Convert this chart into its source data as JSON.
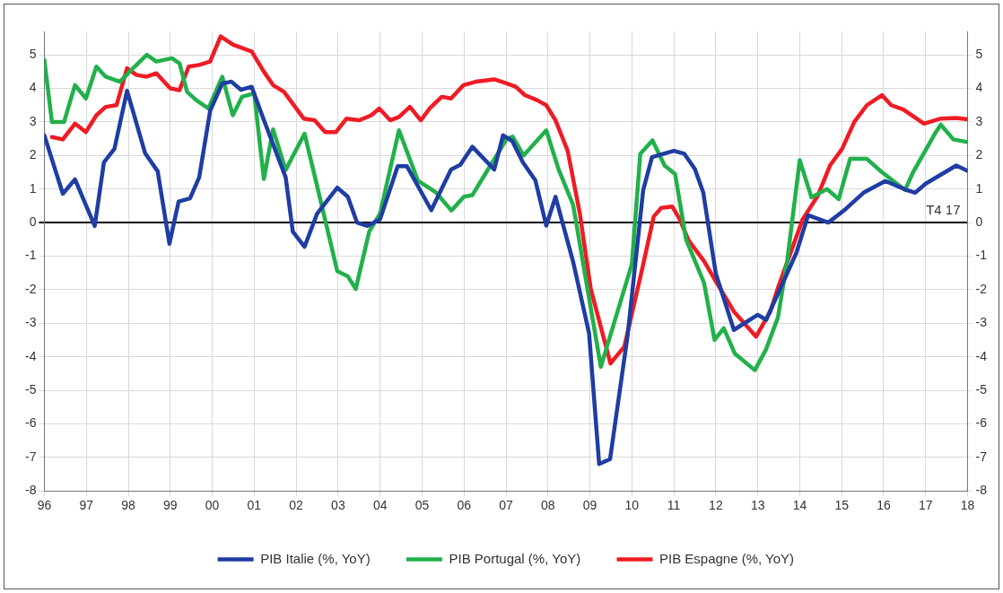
{
  "chart_data": {
    "type": "line",
    "legend": "bottom",
    "grid": true,
    "marker": "none",
    "line_style": "solid",
    "xlim": [
      1996,
      2018
    ],
    "xticks": [
      {
        "value": 1996,
        "label": "96"
      },
      {
        "value": 1997,
        "label": "97"
      },
      {
        "value": 1998,
        "label": "98"
      },
      {
        "value": 1999,
        "label": "99"
      },
      {
        "value": 2000,
        "label": "00"
      },
      {
        "value": 2001,
        "label": "01"
      },
      {
        "value": 2002,
        "label": "02"
      },
      {
        "value": 2003,
        "label": "03"
      },
      {
        "value": 2004,
        "label": "04"
      },
      {
        "value": 2005,
        "label": "05"
      },
      {
        "value": 2006,
        "label": "06"
      },
      {
        "value": 2007,
        "label": "07"
      },
      {
        "value": 2008,
        "label": "08"
      },
      {
        "value": 2009,
        "label": "09"
      },
      {
        "value": 2010,
        "label": "10"
      },
      {
        "value": 2011,
        "label": "11"
      },
      {
        "value": 2012,
        "label": "12"
      },
      {
        "value": 2013,
        "label": "13"
      },
      {
        "value": 2014,
        "label": "14"
      },
      {
        "value": 2015,
        "label": "15"
      },
      {
        "value": 2016,
        "label": "16"
      },
      {
        "value": 2017,
        "label": "17"
      },
      {
        "value": 2018,
        "label": "18"
      }
    ],
    "ylim": [
      -8,
      5.7
    ],
    "yticks": [
      -8,
      -7,
      -6,
      -5,
      -4,
      -3,
      -2,
      -1,
      0,
      1,
      2,
      3,
      4,
      5
    ],
    "y2lim": [
      -8,
      5.7
    ],
    "y2ticks": [
      -8,
      -7,
      -6,
      -5,
      -4,
      -3,
      -2,
      -1,
      0,
      1,
      2,
      3,
      4,
      5
    ],
    "annotations": [
      "T4 17"
    ],
    "series": [
      {
        "name": "PIB Italie (%, YoY)",
        "color": "#1f3da3",
        "x": [
          1996.0,
          1996.44,
          1996.73,
          1997.2,
          1997.42,
          1997.67,
          1997.97,
          1998.4,
          1998.7,
          1998.98,
          1999.2,
          1999.47,
          1999.69,
          1999.95,
          2000.24,
          2000.46,
          2000.68,
          2000.94,
          2001.23,
          2001.75,
          2001.92,
          2002.2,
          2002.5,
          2002.98,
          2003.23,
          2003.45,
          2003.7,
          2004.0,
          2004.42,
          2004.64,
          2005.22,
          2005.69,
          2005.91,
          2006.2,
          2006.72,
          2006.93,
          2007.15,
          2007.4,
          2007.7,
          2007.96,
          2008.18,
          2008.6,
          2008.98,
          2009.22,
          2009.48,
          2009.9,
          2010.27,
          2010.48,
          2011.0,
          2011.25,
          2011.5,
          2011.7,
          2012.0,
          2012.43,
          2013.0,
          2013.2,
          2013.92,
          2014.2,
          2014.68,
          2015.09,
          2015.52,
          2016.04,
          2016.55,
          2016.75,
          2017.0,
          2017.73,
          2018.0
        ],
        "values": [
          2.6,
          0.86,
          1.29,
          -0.1,
          1.8,
          2.2,
          3.93,
          2.07,
          1.53,
          -0.63,
          0.63,
          0.72,
          1.35,
          3.33,
          4.15,
          4.2,
          3.96,
          4.05,
          3.06,
          1.35,
          -0.27,
          -0.72,
          0.27,
          1.04,
          0.77,
          0.0,
          -0.1,
          0.1,
          1.68,
          1.68,
          0.37,
          1.58,
          1.72,
          2.26,
          1.58,
          2.6,
          2.43,
          1.8,
          1.26,
          -0.09,
          0.77,
          -1.17,
          -3.3,
          -7.2,
          -7.05,
          -3.35,
          0.97,
          1.95,
          2.14,
          2.05,
          1.6,
          0.9,
          -1.52,
          -3.2,
          -2.75,
          -2.9,
          -0.9,
          0.22,
          0.0,
          0.4,
          0.89,
          1.24,
          0.97,
          0.89,
          1.16,
          1.7,
          1.54
        ]
      },
      {
        "name": "PIB Portugal (%, YoY)",
        "color": "#22b04b",
        "x": [
          1996.0,
          1996.18,
          1996.47,
          1996.73,
          1996.99,
          1997.24,
          1997.46,
          1997.8,
          1998.15,
          1998.44,
          1998.67,
          1999.04,
          1999.22,
          1999.4,
          1999.62,
          1999.91,
          2000.24,
          2000.49,
          2000.71,
          2001.0,
          2001.23,
          2001.45,
          2001.75,
          2002.2,
          2002.45,
          2002.98,
          2003.23,
          2003.42,
          2003.74,
          2004.0,
          2004.45,
          2004.9,
          2005.33,
          2005.7,
          2006.0,
          2006.2,
          2006.58,
          2007.02,
          2007.16,
          2007.42,
          2007.96,
          2008.25,
          2008.6,
          2009.26,
          2010.0,
          2010.2,
          2010.49,
          2010.78,
          2011.03,
          2011.29,
          2011.72,
          2011.97,
          2012.19,
          2012.45,
          2012.93,
          2013.19,
          2013.48,
          2013.7,
          2014.0,
          2014.28,
          2014.65,
          2014.93,
          2015.2,
          2015.6,
          2015.96,
          2016.51,
          2016.7,
          2017.22,
          2017.36,
          2017.66,
          2018.0
        ],
        "values": [
          4.85,
          3.0,
          3.0,
          4.1,
          3.7,
          4.65,
          4.35,
          4.2,
          4.65,
          5.0,
          4.8,
          4.9,
          4.75,
          3.9,
          3.65,
          3.4,
          4.35,
          3.2,
          3.75,
          3.85,
          1.3,
          2.78,
          1.57,
          2.65,
          1.35,
          -1.45,
          -1.6,
          -1.98,
          -0.27,
          0.27,
          2.75,
          1.25,
          0.9,
          0.36,
          0.77,
          0.82,
          1.6,
          2.5,
          2.56,
          2.0,
          2.75,
          1.6,
          0.53,
          -4.3,
          -1.24,
          2.05,
          2.45,
          1.7,
          1.45,
          -0.5,
          -1.8,
          -3.5,
          -3.15,
          -3.9,
          -4.4,
          -3.8,
          -2.83,
          -1.15,
          1.86,
          0.75,
          1.0,
          0.7,
          1.9,
          1.9,
          1.5,
          0.97,
          1.5,
          2.65,
          2.92,
          2.48,
          2.4
        ]
      },
      {
        "name": "PIB Espagne (%, YoY)",
        "color": "#ee1c25",
        "x": [
          1996.18,
          1996.44,
          1996.73,
          1996.99,
          1997.24,
          1997.46,
          1997.72,
          1997.97,
          1998.2,
          1998.44,
          1998.67,
          1999.0,
          1999.22,
          1999.44,
          1999.69,
          1999.95,
          2000.2,
          2000.5,
          2000.94,
          2001.23,
          2001.45,
          2001.71,
          2002.18,
          2002.44,
          2002.69,
          2002.95,
          2003.2,
          2003.5,
          2003.79,
          2003.98,
          2004.24,
          2004.45,
          2004.71,
          2004.97,
          2005.18,
          2005.47,
          2005.69,
          2005.99,
          2006.28,
          2006.72,
          2007.01,
          2007.23,
          2007.45,
          2007.74,
          2007.96,
          2008.18,
          2008.47,
          2008.76,
          2009.02,
          2009.49,
          2009.82,
          2010.26,
          2010.52,
          2010.7,
          2010.96,
          2011.14,
          2011.35,
          2011.72,
          2012.0,
          2012.43,
          2012.96,
          2013.3,
          2013.48,
          2014.07,
          2014.43,
          2014.72,
          2015.01,
          2015.3,
          2015.6,
          2015.96,
          2016.18,
          2016.47,
          2016.96,
          2017.36,
          2017.73,
          2018.0
        ],
        "values": [
          2.55,
          2.48,
          2.95,
          2.7,
          3.2,
          3.45,
          3.5,
          4.6,
          4.4,
          4.35,
          4.45,
          4.0,
          3.95,
          4.65,
          4.7,
          4.8,
          5.55,
          5.3,
          5.1,
          4.5,
          4.1,
          3.9,
          3.1,
          3.05,
          2.7,
          2.7,
          3.1,
          3.05,
          3.2,
          3.4,
          3.05,
          3.15,
          3.45,
          3.05,
          3.4,
          3.75,
          3.7,
          4.1,
          4.2,
          4.27,
          4.15,
          4.05,
          3.8,
          3.65,
          3.5,
          3.05,
          2.14,
          0.27,
          -1.98,
          -4.2,
          -3.7,
          -1.3,
          0.18,
          0.44,
          0.48,
          0.1,
          -0.53,
          -1.15,
          -1.75,
          -2.65,
          -3.4,
          -2.65,
          -1.95,
          0.1,
          0.8,
          1.7,
          2.2,
          3.0,
          3.5,
          3.8,
          3.5,
          3.37,
          2.95,
          3.1,
          3.12,
          3.08
        ]
      }
    ]
  }
}
